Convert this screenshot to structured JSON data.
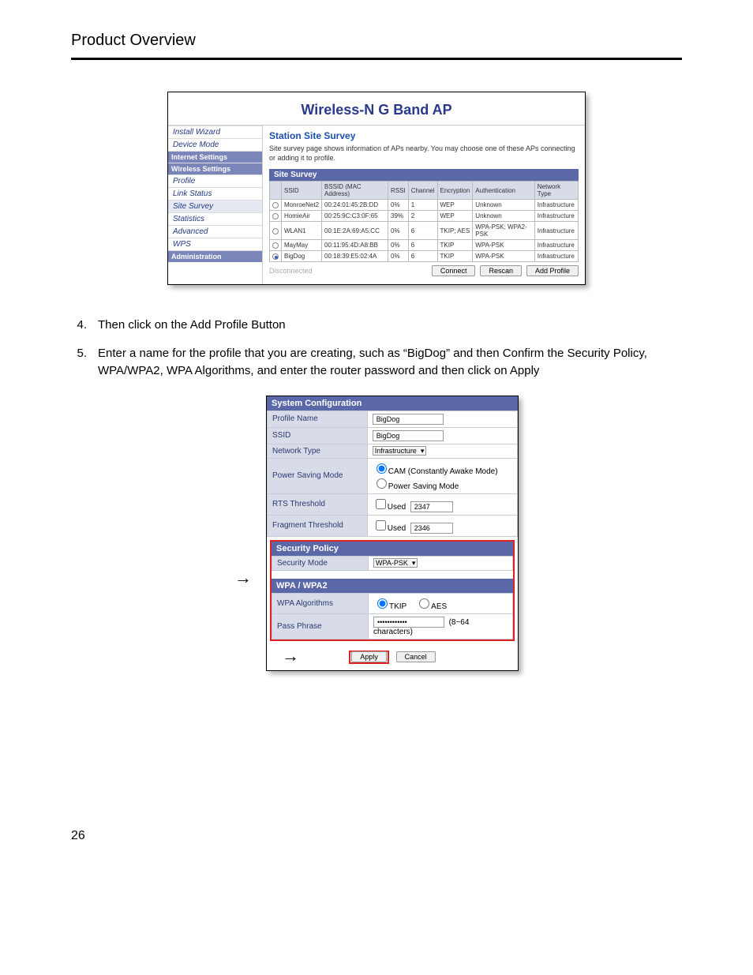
{
  "page": {
    "title": "Product Overview",
    "number": "26"
  },
  "shot1": {
    "header": "Wireless-N G Band AP",
    "nav": [
      {
        "label": "Install Wizard",
        "cls": ""
      },
      {
        "label": "Device Mode",
        "cls": ""
      },
      {
        "label": "Internet Settings",
        "cls": "section"
      },
      {
        "label": "Wireless Settings",
        "cls": "section"
      },
      {
        "label": "Profile",
        "cls": ""
      },
      {
        "label": "Link Status",
        "cls": ""
      },
      {
        "label": "Site Survey",
        "cls": "active"
      },
      {
        "label": "Statistics",
        "cls": ""
      },
      {
        "label": "Advanced",
        "cls": ""
      },
      {
        "label": "WPS",
        "cls": ""
      },
      {
        "label": "Administration",
        "cls": "section"
      }
    ],
    "content_title": "Station Site Survey",
    "content_desc": "Site survey page shows information of APs nearby. You may choose one of these APs connecting or adding it to profile.",
    "survey_head": "Site Survey",
    "cols": [
      "",
      "SSID",
      "BSSID (MAC Address)",
      "RSSI",
      "Channel",
      "Encryption",
      "Authentication",
      "Network Type"
    ],
    "rows": [
      {
        "sel": false,
        "ssid": "MonroeNet2",
        "bssid": "00:24:01:45:2B:DD",
        "rssi": "0%",
        "ch": "1",
        "enc": "WEP",
        "auth": "Unknown",
        "nt": "Infrastructure"
      },
      {
        "sel": false,
        "ssid": "HomieAir",
        "bssid": "00:25:9C:C3:0F:65",
        "rssi": "39%",
        "ch": "2",
        "enc": "WEP",
        "auth": "Unknown",
        "nt": "Infrastructure"
      },
      {
        "sel": false,
        "ssid": "WLAN1",
        "bssid": "00:1E:2A:69:A5:CC",
        "rssi": "0%",
        "ch": "6",
        "enc": "TKIP; AES",
        "auth": "WPA-PSK; WPA2-PSK",
        "nt": "Infrastructure"
      },
      {
        "sel": false,
        "ssid": "MayMay",
        "bssid": "00:11:95:4D:A8:BB",
        "rssi": "0%",
        "ch": "6",
        "enc": "TKIP",
        "auth": "WPA-PSK",
        "nt": "Infrastructure"
      },
      {
        "sel": true,
        "ssid": "BigDog",
        "bssid": "00:18:39:E5:02:4A",
        "rssi": "0%",
        "ch": "6",
        "enc": "TKIP",
        "auth": "WPA-PSK",
        "nt": "Infrastructure"
      }
    ],
    "disconnected": "Disconnected",
    "btn_connect": "Connect",
    "btn_rescan": "Rescan",
    "btn_add": "Add Profile"
  },
  "instr": [
    {
      "n": "4.",
      "t": "Then click on the Add Profile Button"
    },
    {
      "n": "5.",
      "t": "Enter a name for the profile that you are creating, such as “BigDog” and then Confirm the Security Policy, WPA/WPA2, WPA Algorithms, and enter the router password and then click on Apply"
    }
  ],
  "shot2": {
    "syscfg_head": "System Configuration",
    "fields": {
      "profile_name_l": "Profile Name",
      "profile_name_v": "BigDog",
      "ssid_l": "SSID",
      "ssid_v": "BigDog",
      "nettype_l": "Network Type",
      "nettype_v": "Infrastructure",
      "psm_l": "Power Saving Mode",
      "psm_opt1": "CAM (Constantly Awake Mode)",
      "psm_opt2": "Power Saving Mode",
      "rts_l": "RTS Threshold",
      "rts_used": "Used",
      "rts_v": "2347",
      "frag_l": "Fragment Threshold",
      "frag_used": "Used",
      "frag_v": "2346"
    },
    "sec_head": "Security Policy",
    "sec_mode_l": "Security Mode",
    "sec_mode_v": "WPA-PSK",
    "wpa_head": "WPA / WPA2",
    "wpa_alg_l": "WPA Algorithms",
    "wpa_tkip": "TKIP",
    "wpa_aes": "AES",
    "pass_l": "Pass Phrase",
    "pass_v": "••••••••••••",
    "pass_hint": "(8~64 characters)",
    "btn_apply": "Apply",
    "btn_cancel": "Cancel"
  }
}
